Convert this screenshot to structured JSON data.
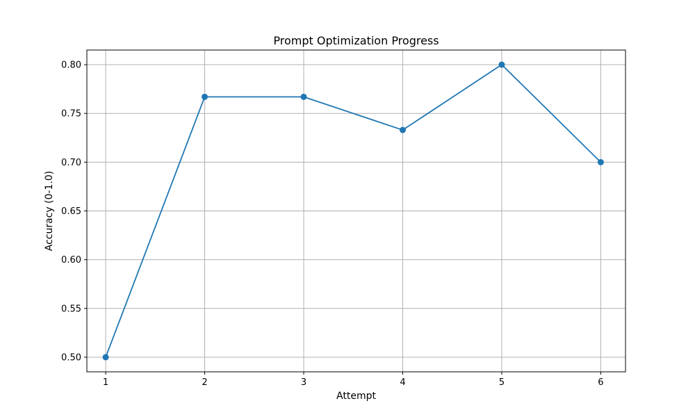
{
  "chart_data": {
    "type": "line",
    "title": "Prompt Optimization Progress",
    "xlabel": "Attempt",
    "ylabel": "Accuracy (0-1.0)",
    "x": [
      1,
      2,
      3,
      4,
      5,
      6
    ],
    "series": [
      {
        "values": [
          0.5,
          0.767,
          0.767,
          0.733,
          0.8,
          0.7
        ],
        "color": "#1f77b4",
        "marker": "circle"
      }
    ],
    "xlim": [
      0.81,
      6.25
    ],
    "ylim": [
      0.485,
      0.815
    ],
    "xticks": [
      "1",
      "2",
      "3",
      "4",
      "5",
      "6"
    ],
    "yticks": [
      "0.50",
      "0.55",
      "0.60",
      "0.65",
      "0.70",
      "0.75",
      "0.80"
    ],
    "grid": true,
    "grid_color": "#b0b0b0"
  }
}
